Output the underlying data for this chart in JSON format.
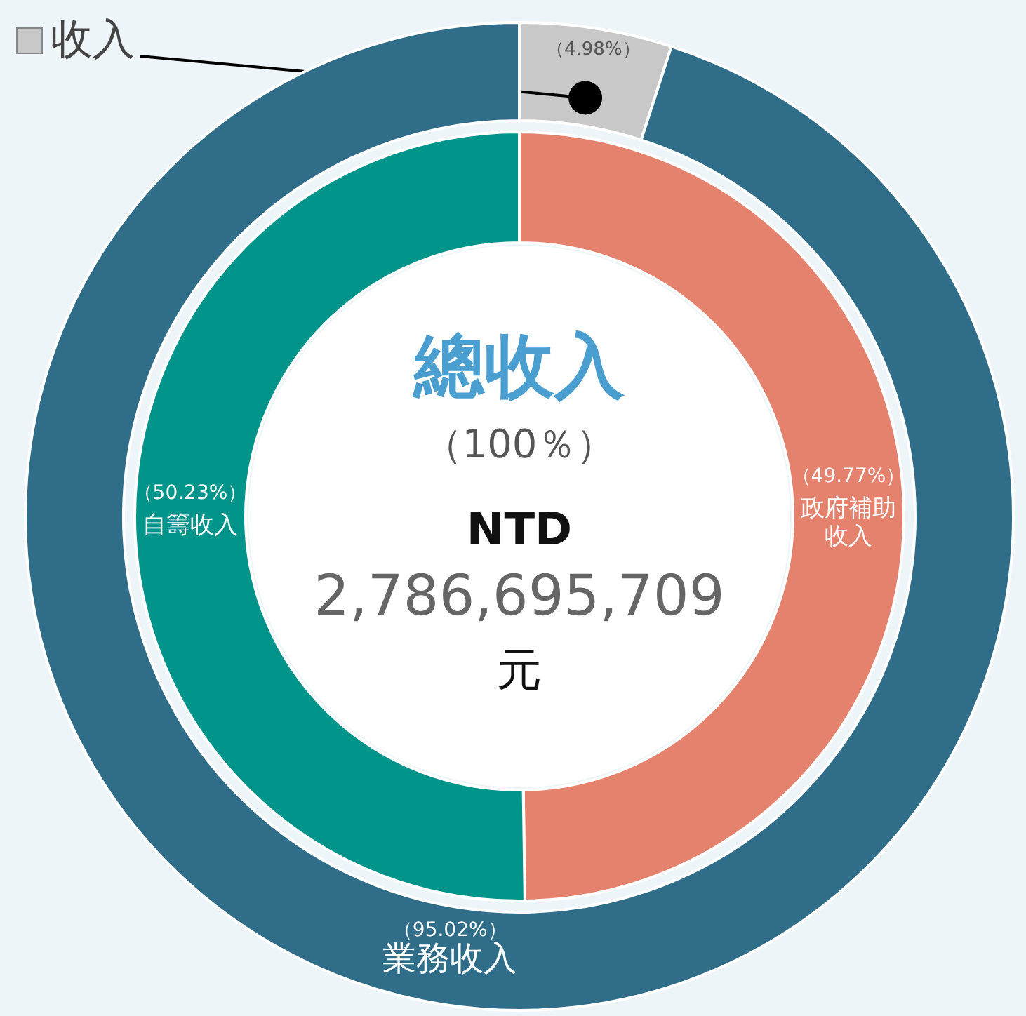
{
  "chart_data": [
    {
      "type": "donut",
      "title": "總收入",
      "subtitle": "（100％）",
      "annotations": [
        "NTD",
        "2,786,695,709",
        "元"
      ],
      "categories": [
        "收入",
        "業務收入"
      ],
      "values": [
        4.98,
        95.02
      ],
      "value_labels": [
        "（4.98%）",
        "（95.02%）"
      ],
      "colors": [
        "#c8c8c8",
        "#2f6d88"
      ]
    },
    {
      "type": "donut",
      "categories": [
        "政府補助收入",
        "自籌收入"
      ],
      "values": [
        49.77,
        50.23
      ],
      "value_labels": [
        "（49.77%）",
        "（50.23%）"
      ],
      "colors": [
        "#e4826e",
        "#00948a"
      ]
    }
  ]
}
